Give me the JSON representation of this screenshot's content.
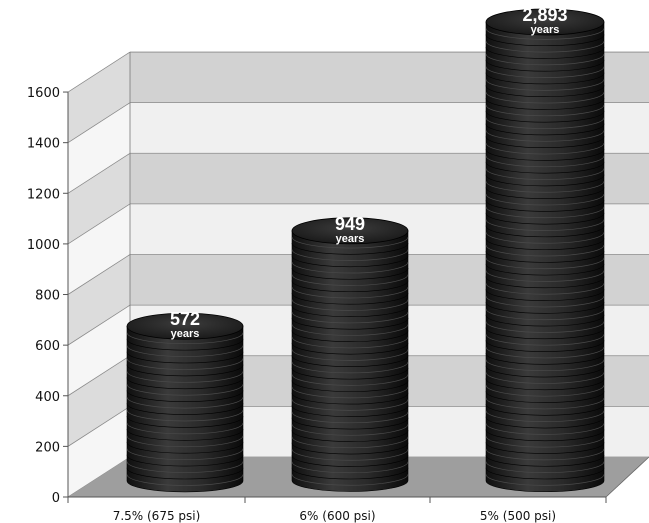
{
  "chart_data": {
    "type": "bar",
    "categories": [
      "7.5% (675 psi)",
      "6% (600 psi)",
      "5% (500 psi)"
    ],
    "values": [
      572,
      949,
      2893
    ],
    "value_labels": [
      "572",
      "949",
      "2,893"
    ],
    "value_unit": "years",
    "ylim": [
      0,
      1600
    ],
    "yticks": [
      0,
      200,
      400,
      600,
      800,
      1000,
      1200,
      1400,
      1600
    ],
    "grid": true,
    "style": "3d stacked coins",
    "colors": {
      "coin": "#2a2a2a",
      "band_dark": "#d2d2d2",
      "band_light": "#f0f0f0",
      "floor": "#9e9e9e"
    }
  }
}
